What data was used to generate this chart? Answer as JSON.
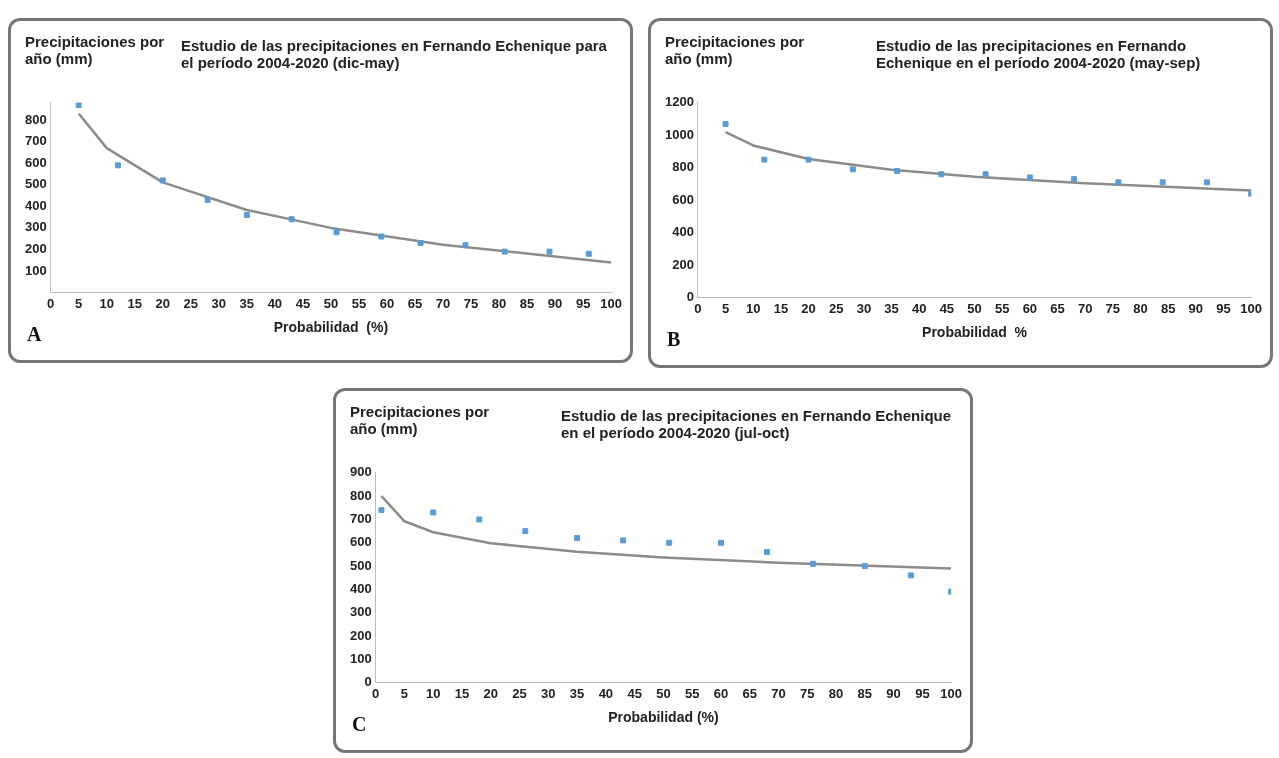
{
  "chart_data": [
    {
      "type": "scatter",
      "title": "Estudio de las precipitaciones en Fernando Echenique para el período 2004-2020 (dic-may)",
      "ylabel": "Precipitaciones por año (mm)",
      "xlabel": "Probabilidad  (%)",
      "annotations": [
        "A"
      ],
      "xlim": [
        0,
        100
      ],
      "xticks": [
        0,
        5,
        10,
        15,
        20,
        25,
        30,
        35,
        40,
        45,
        50,
        55,
        60,
        65,
        70,
        75,
        80,
        85,
        90,
        95,
        100
      ],
      "ylim": [
        0,
        880
      ],
      "yticks": [
        100,
        200,
        300,
        400,
        500,
        600,
        700,
        800
      ],
      "grid": false,
      "legend": false,
      "series": [
        {
          "type": "scatter",
          "marker": "square",
          "color": "#5b9bd5",
          "x": [
            5,
            12,
            20,
            28,
            35,
            43,
            51,
            59,
            66,
            74,
            81,
            89,
            96
          ],
          "values": [
            870,
            590,
            520,
            430,
            360,
            340,
            280,
            260,
            230,
            220,
            190,
            190,
            180
          ]
        },
        {
          "type": "line",
          "marker": "none",
          "color": "#8c8c8c",
          "x": [
            5,
            10,
            20,
            35,
            50,
            70,
            100
          ],
          "values": [
            830,
            670,
            511,
            383,
            300,
            222,
            140
          ]
        }
      ]
    },
    {
      "type": "scatter",
      "title": "Estudio de las precipitaciones en Fernando Echenique en el período 2004-2020 (may-sep)",
      "ylabel": "Precipitaciones por año (mm)",
      "xlabel": "Probabilidad  %",
      "annotations": [
        "B"
      ],
      "xlim": [
        0,
        100
      ],
      "xticks": [
        0,
        5,
        10,
        15,
        20,
        25,
        30,
        35,
        40,
        45,
        50,
        55,
        60,
        65,
        70,
        75,
        80,
        85,
        90,
        95,
        100
      ],
      "ylim": [
        0,
        1200
      ],
      "yticks": [
        0,
        200,
        400,
        600,
        800,
        1000,
        1200
      ],
      "grid": false,
      "legend": false,
      "series": [
        {
          "type": "scatter",
          "marker": "square",
          "color": "#5b9bd5",
          "x": [
            5,
            12,
            20,
            28,
            36,
            44,
            52,
            60,
            68,
            76,
            84,
            92,
            100
          ],
          "values": [
            1070,
            850,
            850,
            790,
            780,
            760,
            760,
            740,
            730,
            710,
            710,
            710,
            640
          ]
        },
        {
          "type": "line",
          "marker": "none",
          "color": "#8c8c8c",
          "x": [
            5,
            10,
            20,
            35,
            50,
            70,
            100
          ],
          "values": [
            1020,
            937,
            854,
            787,
            744,
            704,
            660
          ]
        }
      ]
    },
    {
      "type": "scatter",
      "title": "Estudio de las precipitaciones en Fernando Echenique en el período 2004-2020 (jul-oct)",
      "ylabel": "Precipitaciones por año (mm)",
      "xlabel": "Probabilidad (%)",
      "annotations": [
        "C"
      ],
      "xlim": [
        0,
        100
      ],
      "xticks": [
        0,
        5,
        10,
        15,
        20,
        25,
        30,
        35,
        40,
        45,
        50,
        55,
        60,
        65,
        70,
        75,
        80,
        85,
        90,
        95,
        100
      ],
      "ylim": [
        0,
        900
      ],
      "yticks": [
        0,
        100,
        200,
        300,
        400,
        500,
        600,
        700,
        800,
        900
      ],
      "grid": false,
      "legend": false,
      "series": [
        {
          "type": "scatter",
          "marker": "square",
          "color": "#5b9bd5",
          "x": [
            1,
            10,
            18,
            26,
            35,
            43,
            51,
            60,
            68,
            76,
            85,
            93,
            100
          ],
          "values": [
            740,
            730,
            700,
            650,
            620,
            610,
            600,
            600,
            560,
            510,
            500,
            460,
            390
          ]
        },
        {
          "type": "line",
          "marker": "none",
          "color": "#8c8c8c",
          "x": [
            1,
            5,
            10,
            20,
            35,
            50,
            70,
            100
          ],
          "values": [
            800,
            692,
            645,
            598,
            561,
            537,
            514,
            490
          ]
        }
      ]
    }
  ]
}
